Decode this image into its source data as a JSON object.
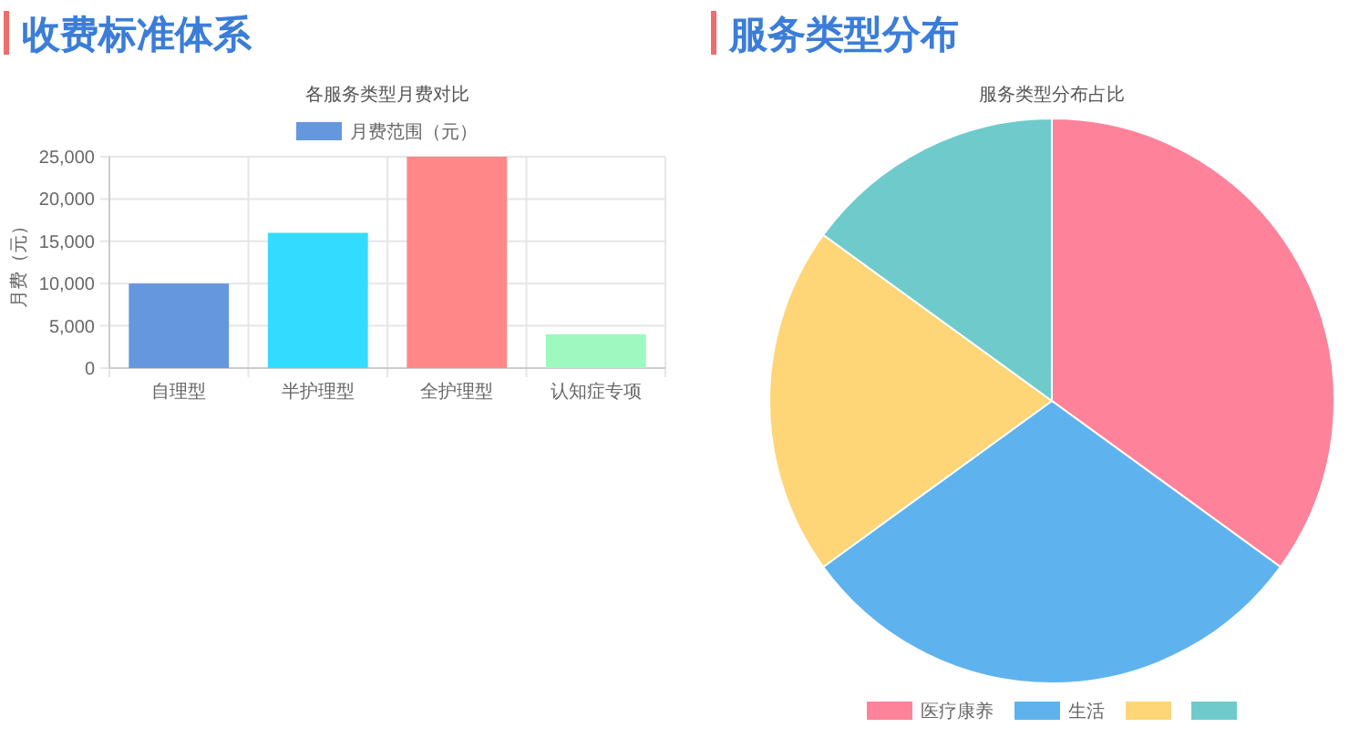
{
  "chart_data": [
    {
      "type": "bar",
      "title": "收费标准体系",
      "subtitle": "各服务类型月费对比",
      "ylabel": "月费（元）",
      "categories": [
        "自理型",
        "半护理型",
        "全护理型",
        "认知症专项"
      ],
      "series": [
        {
          "name": "月费范围（元）",
          "colors": [
            "#6597de",
            "#33dcff",
            "#ff8787",
            "#9ef9bf"
          ],
          "values": [
            10000,
            16000,
            25000,
            4000
          ]
        }
      ],
      "ylim": [
        0,
        25000
      ],
      "yticks": [
        0,
        {
          "value": 5000,
          "label": "5,000"
        },
        {
          "value": 10000,
          "label": "10,000"
        },
        {
          "value": 15000,
          "label": "15,000"
        },
        {
          "value": 20000,
          "label": "20,000"
        },
        {
          "value": 25000,
          "label": "25,000"
        }
      ],
      "grid": true,
      "legend": "top"
    },
    {
      "type": "pie",
      "title": "服务类型分布",
      "subtitle": "服务类型分布占比",
      "categories": [
        "医疗康养",
        "生活",
        null,
        null
      ],
      "values": [
        35,
        30,
        20,
        15
      ],
      "colors": [
        "#ff829b",
        "#5eb3ef",
        "#fed577",
        "#6fcbcb"
      ],
      "legend": "bottom"
    }
  ]
}
